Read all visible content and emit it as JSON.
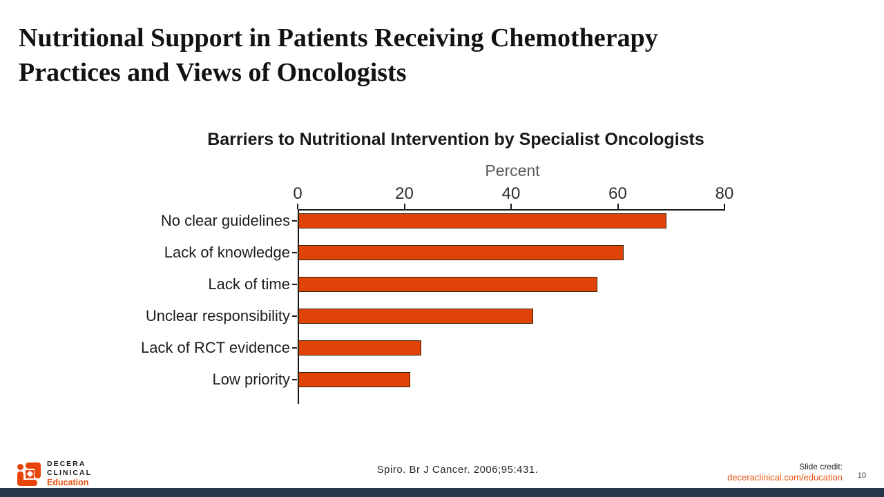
{
  "slide": {
    "title_line1": "Nutritional Support in Patients Receiving Chemotherapy",
    "title_line2": "Practices and Views of Oncologists",
    "page_number": "10"
  },
  "footer": {
    "citation": "Spiro. Br J Cancer. 2006;95:431.",
    "credit_label": "Slide credit:",
    "credit_url": "deceraclinical.com/education",
    "logo_line1": "DECERA",
    "logo_line2": "CLINICAL",
    "logo_line3": "Education"
  },
  "colors": {
    "accent": "#E04307",
    "bar_outline": "#35210C",
    "axis": "#1A1A1A",
    "percent_label_gray": "#595959",
    "link_orange": "#E8500F",
    "bottom_bar_navy": "#25354A"
  },
  "chart_data": {
    "type": "bar",
    "orientation": "horizontal",
    "title": "Barriers to Nutritional Intervention by Specialist Oncologists",
    "xlabel": "Percent",
    "ylabel": "",
    "xlim": [
      0,
      80
    ],
    "ticks": [
      0,
      20,
      40,
      60,
      80
    ],
    "categories": [
      "No clear guidelines",
      "Lack of knowledge",
      "Lack of time",
      "Unclear responsibility",
      "Lack of RCT evidence",
      "Low priority"
    ],
    "values": [
      69,
      61,
      56,
      44,
      23,
      21
    ],
    "bar_color": "#E04307",
    "grid": false,
    "legend": false
  }
}
